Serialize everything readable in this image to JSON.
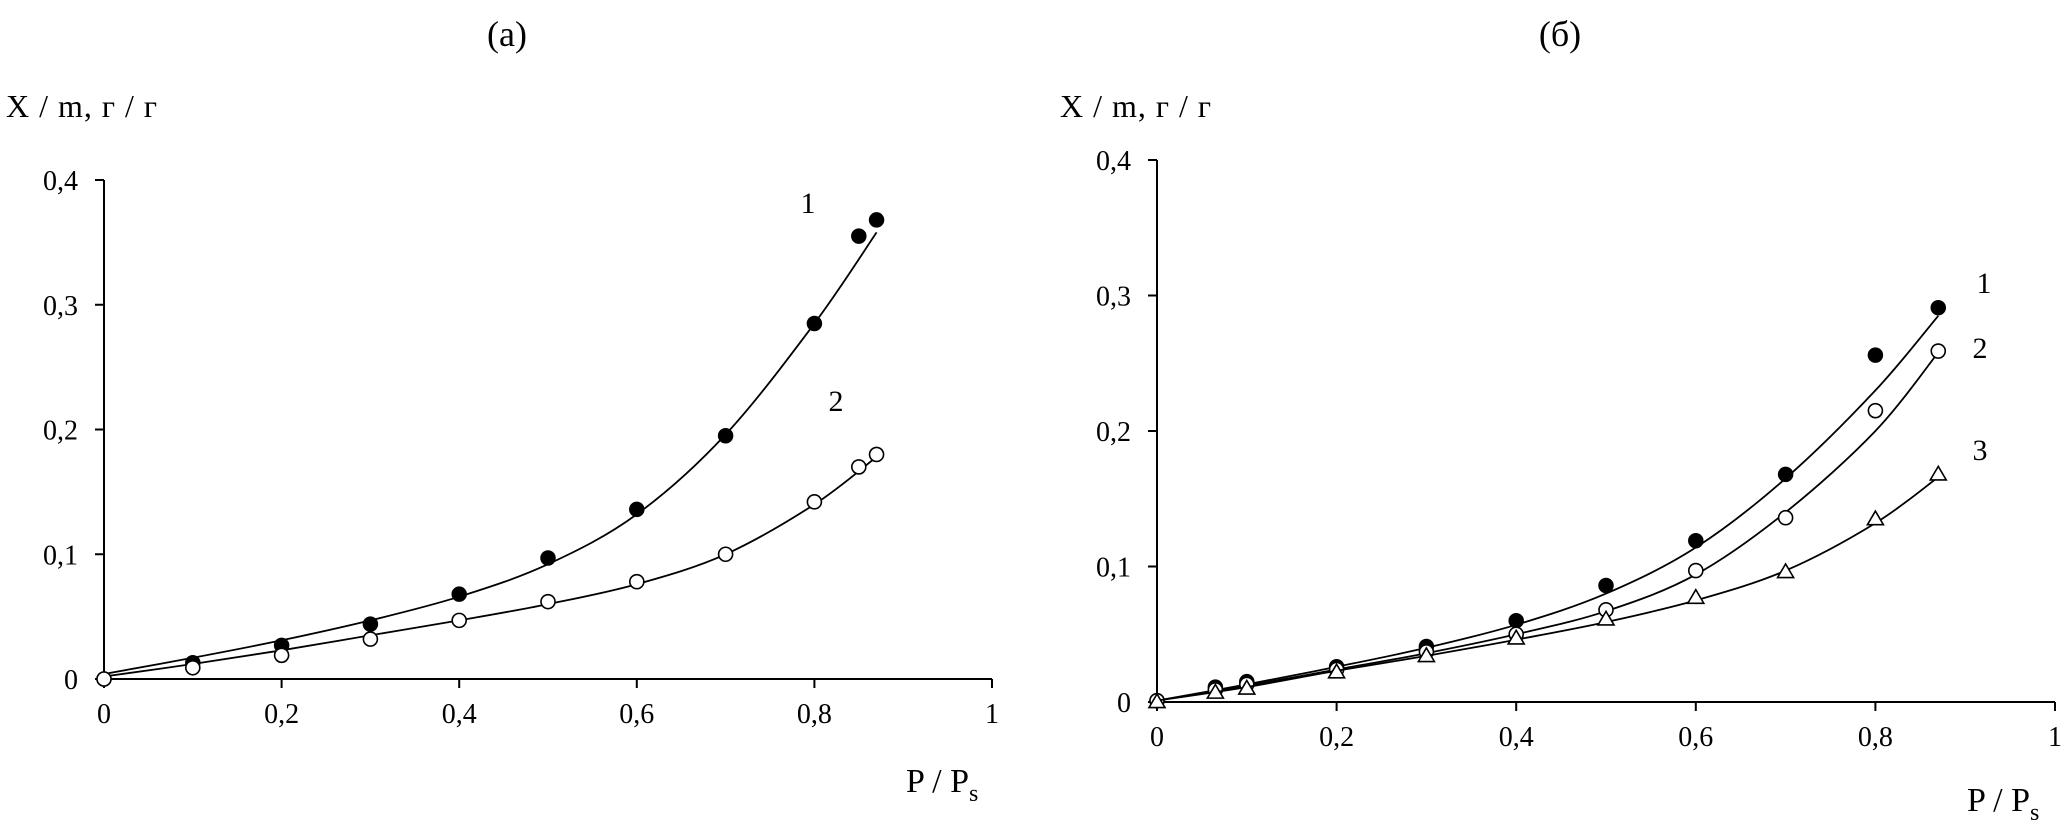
{
  "chart_data": [
    {
      "type": "scatter",
      "panel_label": "(а)",
      "ylabel": "X / m,  г / г",
      "xlabel": "P / P",
      "xlabel_sub": "s",
      "xlim": [
        0,
        1
      ],
      "ylim": [
        0,
        0.4
      ],
      "x_ticks": [
        "0",
        "0,2",
        "0,4",
        "0,6",
        "0,8",
        "1"
      ],
      "y_ticks": [
        "0",
        "0,1",
        "0,2",
        "0,3",
        "0,4"
      ],
      "grid": false,
      "legend": "none",
      "series": [
        {
          "curve_label": "1",
          "marker": "filled-circle",
          "points": [
            [
              0,
              0
            ],
            [
              0.1,
              0.013
            ],
            [
              0.2,
              0.027
            ],
            [
              0.3,
              0.044
            ],
            [
              0.4,
              0.068
            ],
            [
              0.5,
              0.097
            ],
            [
              0.6,
              0.136
            ],
            [
              0.7,
              0.195
            ],
            [
              0.8,
              0.285
            ],
            [
              0.85,
              0.355
            ],
            [
              0.87,
              0.368
            ]
          ],
          "fit": [
            [
              0,
              0.004
            ],
            [
              0.1,
              0.017
            ],
            [
              0.2,
              0.031
            ],
            [
              0.3,
              0.047
            ],
            [
              0.4,
              0.066
            ],
            [
              0.5,
              0.092
            ],
            [
              0.6,
              0.132
            ],
            [
              0.7,
              0.196
            ],
            [
              0.8,
              0.285
            ],
            [
              0.87,
              0.358
            ]
          ]
        },
        {
          "curve_label": "2",
          "marker": "open-circle",
          "points": [
            [
              0,
              0
            ],
            [
              0.1,
              0.009
            ],
            [
              0.2,
              0.019
            ],
            [
              0.3,
              0.032
            ],
            [
              0.4,
              0.047
            ],
            [
              0.5,
              0.062
            ],
            [
              0.6,
              0.078
            ],
            [
              0.7,
              0.1
            ],
            [
              0.8,
              0.142
            ],
            [
              0.85,
              0.17
            ],
            [
              0.87,
              0.18
            ]
          ],
          "fit": [
            [
              0,
              0.002
            ],
            [
              0.1,
              0.012
            ],
            [
              0.2,
              0.023
            ],
            [
              0.3,
              0.035
            ],
            [
              0.4,
              0.047
            ],
            [
              0.5,
              0.06
            ],
            [
              0.6,
              0.076
            ],
            [
              0.7,
              0.1
            ],
            [
              0.8,
              0.14
            ],
            [
              0.87,
              0.178
            ]
          ]
        }
      ]
    },
    {
      "type": "scatter",
      "panel_label": "(б)",
      "ylabel": "X / m,  г / г",
      "xlabel": "P / P",
      "xlabel_sub": "s",
      "xlim": [
        0,
        1
      ],
      "ylim": [
        0,
        0.4
      ],
      "x_ticks": [
        "0",
        "0,2",
        "0,4",
        "0,6",
        "0,8",
        "1"
      ],
      "y_ticks": [
        "0",
        "0,1",
        "0,2",
        "0,3",
        "0,4"
      ],
      "grid": false,
      "legend": "none",
      "series": [
        {
          "curve_label": "1",
          "marker": "filled-circle",
          "points": [
            [
              0,
              0.001
            ],
            [
              0.065,
              0.011
            ],
            [
              0.1,
              0.015
            ],
            [
              0.2,
              0.026
            ],
            [
              0.3,
              0.041
            ],
            [
              0.4,
              0.06
            ],
            [
              0.5,
              0.086
            ],
            [
              0.6,
              0.119
            ],
            [
              0.7,
              0.168
            ],
            [
              0.8,
              0.256
            ],
            [
              0.87,
              0.291
            ]
          ],
          "fit": [
            [
              0,
              0.001
            ],
            [
              0.1,
              0.013
            ],
            [
              0.2,
              0.026
            ],
            [
              0.3,
              0.04
            ],
            [
              0.4,
              0.057
            ],
            [
              0.5,
              0.08
            ],
            [
              0.6,
              0.114
            ],
            [
              0.7,
              0.165
            ],
            [
              0.8,
              0.23
            ],
            [
              0.87,
              0.285
            ]
          ]
        },
        {
          "curve_label": "2",
          "marker": "open-circle",
          "points": [
            [
              0,
              0.001
            ],
            [
              0.065,
              0.009
            ],
            [
              0.1,
              0.013
            ],
            [
              0.2,
              0.024
            ],
            [
              0.3,
              0.037
            ],
            [
              0.4,
              0.05
            ],
            [
              0.5,
              0.068
            ],
            [
              0.6,
              0.097
            ],
            [
              0.7,
              0.136
            ],
            [
              0.8,
              0.215
            ],
            [
              0.87,
              0.259
            ]
          ],
          "fit": [
            [
              0,
              0.001
            ],
            [
              0.1,
              0.012
            ],
            [
              0.2,
              0.024
            ],
            [
              0.3,
              0.036
            ],
            [
              0.4,
              0.05
            ],
            [
              0.5,
              0.067
            ],
            [
              0.6,
              0.094
            ],
            [
              0.7,
              0.14
            ],
            [
              0.8,
              0.2
            ],
            [
              0.87,
              0.258
            ]
          ]
        },
        {
          "curve_label": "3",
          "marker": "open-triangle",
          "points": [
            [
              0,
              0
            ],
            [
              0.065,
              0.007
            ],
            [
              0.1,
              0.01
            ],
            [
              0.2,
              0.022
            ],
            [
              0.3,
              0.034
            ],
            [
              0.4,
              0.047
            ],
            [
              0.5,
              0.061
            ],
            [
              0.6,
              0.077
            ],
            [
              0.7,
              0.096
            ],
            [
              0.8,
              0.135
            ],
            [
              0.87,
              0.168
            ]
          ],
          "fit": [
            [
              0,
              0.001
            ],
            [
              0.1,
              0.011
            ],
            [
              0.2,
              0.023
            ],
            [
              0.3,
              0.034
            ],
            [
              0.4,
              0.046
            ],
            [
              0.5,
              0.059
            ],
            [
              0.6,
              0.075
            ],
            [
              0.7,
              0.097
            ],
            [
              0.8,
              0.132
            ],
            [
              0.87,
              0.166
            ]
          ]
        }
      ]
    }
  ]
}
